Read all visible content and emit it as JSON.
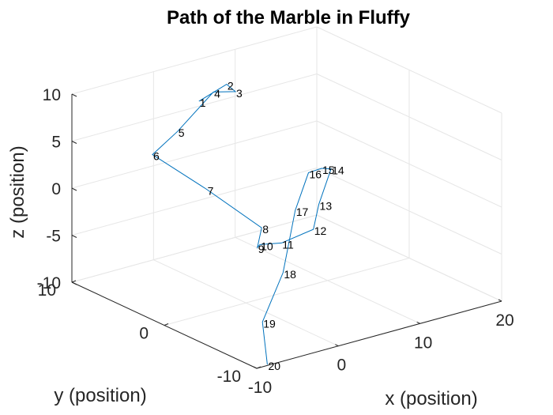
{
  "chart_data": {
    "type": "line3d",
    "title": "Path of the Marble in Fluffy",
    "xlabel": "x (position)",
    "ylabel": "y (position)",
    "zlabel": "z (position)",
    "xlim": [
      -10,
      20
    ],
    "ylim": [
      -10,
      10
    ],
    "zlim": [
      -10,
      10
    ],
    "xticks": [
      "-10",
      "0",
      "10",
      "20"
    ],
    "yticks": [
      "-10",
      "0",
      "10"
    ],
    "zticks": [
      "-10",
      "-5",
      "0",
      "5",
      "10"
    ],
    "grid": true,
    "line_color": "#0072BD",
    "points": [
      {
        "label": "1",
        "x": 4.2,
        "y": 8.8,
        "z": 6.4
      },
      {
        "label": "2",
        "x": 7.6,
        "y": 8.8,
        "z": 7.4
      },
      {
        "label": "3",
        "x": 5.5,
        "y": 6.0,
        "z": 8.4
      },
      {
        "label": "4",
        "x": 2.8,
        "y": 6.0,
        "z": 9.0
      },
      {
        "label": "5",
        "x": -6.0,
        "y": 2.1,
        "z": 8.7
      },
      {
        "label": "6",
        "x": -11.0,
        "y": 0.4,
        "z": 8.2
      },
      {
        "label": "7",
        "x": -10.7,
        "y": -5.2,
        "z": 7.0
      },
      {
        "label": "8",
        "x": -9.4,
        "y": -10.0,
        "z": 4.8
      },
      {
        "label": "9",
        "x": -8.0,
        "y": -8.3,
        "z": 1.6
      },
      {
        "label": "10",
        "x": -5.3,
        "y": -6.2,
        "z": 0.3
      },
      {
        "label": "11",
        "x": -1.2,
        "y": -4.9,
        "z": -1.1
      },
      {
        "label": "12",
        "x": 4.3,
        "y": -3.5,
        "z": -1.6
      },
      {
        "label": "13",
        "x": 7.0,
        "y": -1.7,
        "z": -0.4
      },
      {
        "label": "14",
        "x": 11.0,
        "y": 0.5,
        "z": 1.4
      },
      {
        "label": "15",
        "x": 10.5,
        "y": 1.1,
        "z": 1.3
      },
      {
        "label": "16",
        "x": 8.0,
        "y": 0.3,
        "z": 1.8
      },
      {
        "label": "17",
        "x": 4.0,
        "y": -1.8,
        "z": -0.3
      },
      {
        "label": "18",
        "x": -1.0,
        "y": -4.9,
        "z": -4.3
      },
      {
        "label": "19",
        "x": -5.0,
        "y": -6.2,
        "z": -8.0
      },
      {
        "label": "20",
        "x": -7.0,
        "y": -8.5,
        "z": -11.0
      }
    ]
  }
}
